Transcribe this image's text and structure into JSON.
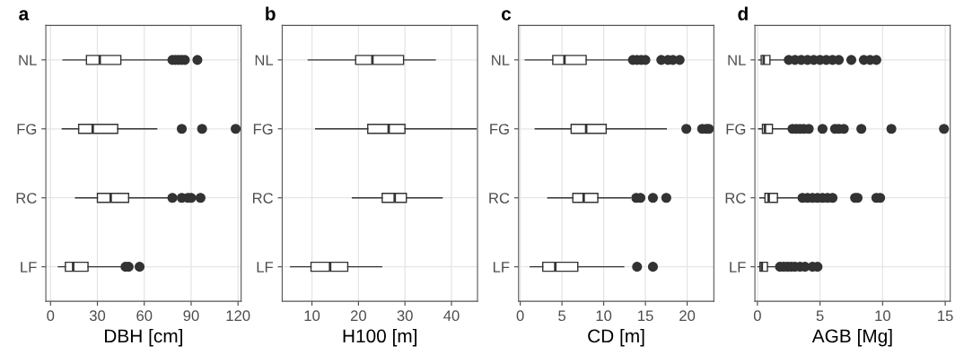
{
  "chart_data": [
    {
      "type": "box",
      "title": "a",
      "orientation": "horizontal",
      "xlabel": "DBH [cm]",
      "categories": [
        "NL",
        "FG",
        "RC",
        "LF"
      ],
      "color": "#333333",
      "grid": true,
      "xlim": [
        -3,
        122
      ],
      "xticks": [
        0,
        30,
        60,
        90,
        120
      ],
      "boxes": [
        {
          "low": 8,
          "q1": 23,
          "median": 31.5,
          "q3": 45,
          "high": 76,
          "outliers": [
            78,
            80,
            82,
            84,
            86,
            94
          ]
        },
        {
          "low": 7.5,
          "q1": 18,
          "median": 27,
          "q3": 43,
          "high": 68,
          "outliers": [
            84,
            97,
            118.5
          ]
        },
        {
          "low": 16,
          "q1": 30,
          "median": 38.5,
          "q3": 50,
          "high": 76,
          "outliers": [
            78,
            84,
            88,
            90,
            96
          ]
        },
        {
          "low": 5,
          "q1": 9.5,
          "median": 14.5,
          "q3": 24,
          "high": 46,
          "outliers": [
            48,
            50,
            57
          ]
        }
      ]
    },
    {
      "type": "box",
      "title": "b",
      "orientation": "horizontal",
      "xlabel": "H100 [m]",
      "categories": [
        "NL",
        "FG",
        "RC",
        "LF"
      ],
      "color": "#333333",
      "grid": true,
      "xlim": [
        3.6,
        45.6
      ],
      "xticks": [
        10,
        20,
        30,
        40
      ],
      "boxes": [
        {
          "low": 9.2,
          "q1": 19.4,
          "median": 23,
          "q3": 29.7,
          "high": 36.5
        },
        {
          "low": 10.8,
          "q1": 22,
          "median": 26.5,
          "q3": 30,
          "high": 45.3
        },
        {
          "low": 18.7,
          "q1": 25.1,
          "median": 27.8,
          "q3": 30.3,
          "high": 38
        },
        {
          "low": 5.4,
          "q1": 9.8,
          "median": 13.9,
          "q3": 17.7,
          "high": 25
        }
      ]
    },
    {
      "type": "box",
      "title": "c",
      "orientation": "horizontal",
      "xlabel": "CD [m]",
      "categories": [
        "NL",
        "FG",
        "RC",
        "LF"
      ],
      "color": "#333333",
      "grid": true,
      "xlim": [
        -0.2,
        23.2
      ],
      "xticks": [
        0,
        5,
        10,
        15,
        20
      ],
      "boxes": [
        {
          "low": 0.6,
          "q1": 3.9,
          "median": 5.3,
          "q3": 7.9,
          "high": 13.2,
          "outliers": [
            13.5,
            14,
            14.5,
            15,
            16.9,
            17.7,
            18.3,
            19.1
          ]
        },
        {
          "low": 1.8,
          "q1": 6.1,
          "median": 7.9,
          "q3": 10.3,
          "high": 17.5,
          "outliers": [
            19.9,
            21.8,
            22.3,
            22.6
          ]
        },
        {
          "low": 3.3,
          "q1": 6.3,
          "median": 7.6,
          "q3": 9.3,
          "high": 13.2,
          "outliers": [
            13.9,
            14.4,
            15.9,
            17.5
          ]
        },
        {
          "low": 1.2,
          "q1": 2.7,
          "median": 4.2,
          "q3": 6.9,
          "high": 12.4,
          "outliers": [
            14,
            15.9
          ]
        }
      ]
    },
    {
      "type": "box",
      "title": "d",
      "orientation": "horizontal",
      "xlabel": "AGB [Mg]",
      "categories": [
        "NL",
        "FG",
        "RC",
        "LF"
      ],
      "color": "#333333",
      "grid": true,
      "xlim": [
        -0.2,
        15.4
      ],
      "xticks": [
        0,
        5,
        10,
        15
      ],
      "boxes": [
        {
          "low": 0.1,
          "q1": 0.3,
          "median": 0.5,
          "q3": 1.0,
          "high": 2.2,
          "outliers": [
            2.5,
            3,
            3.5,
            4,
            4.5,
            5,
            5.5,
            6,
            6.5,
            7.5,
            8.5,
            9,
            9.5
          ]
        },
        {
          "low": 0.1,
          "q1": 0.4,
          "median": 0.6,
          "q3": 1.2,
          "high": 2.5,
          "outliers": [
            2.8,
            3.1,
            3.4,
            3.7,
            4.1,
            5.2,
            6.2,
            6.5,
            6.9,
            8.3,
            10.7,
            14.9
          ]
        },
        {
          "low": 0.2,
          "q1": 0.6,
          "median": 0.9,
          "q3": 1.6,
          "high": 3.3,
          "outliers": [
            3.6,
            4,
            4.4,
            4.8,
            5.2,
            5.6,
            6,
            7.8,
            8,
            9.5,
            9.8
          ]
        },
        {
          "low": 0.05,
          "q1": 0.2,
          "median": 0.35,
          "q3": 0.8,
          "high": 1.6,
          "outliers": [
            1.8,
            2.1,
            2.4,
            2.7,
            3,
            3.4,
            3.8,
            4.4,
            4.8
          ]
        }
      ]
    }
  ]
}
